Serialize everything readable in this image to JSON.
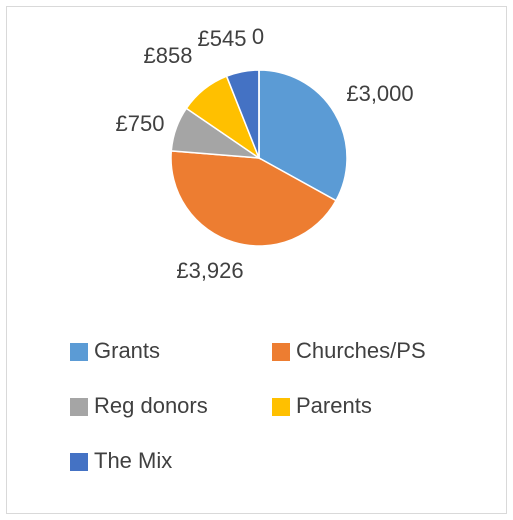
{
  "chart_data": {
    "type": "pie",
    "categories": [
      "Grants",
      "Churches/PS",
      "Reg donors",
      "Parents",
      "The Mix",
      null
    ],
    "values": [
      3000,
      3926,
      750,
      858,
      545,
      0
    ],
    "value_labels": [
      "£3,000",
      "£3,926",
      "£750",
      "£858",
      "£545",
      "0"
    ],
    "colors": [
      "#5b9bd5",
      "#ed7d31",
      "#a5a5a5",
      "#ffc000",
      "#4472c4",
      "#70ad47"
    ],
    "legend": "bottom"
  }
}
